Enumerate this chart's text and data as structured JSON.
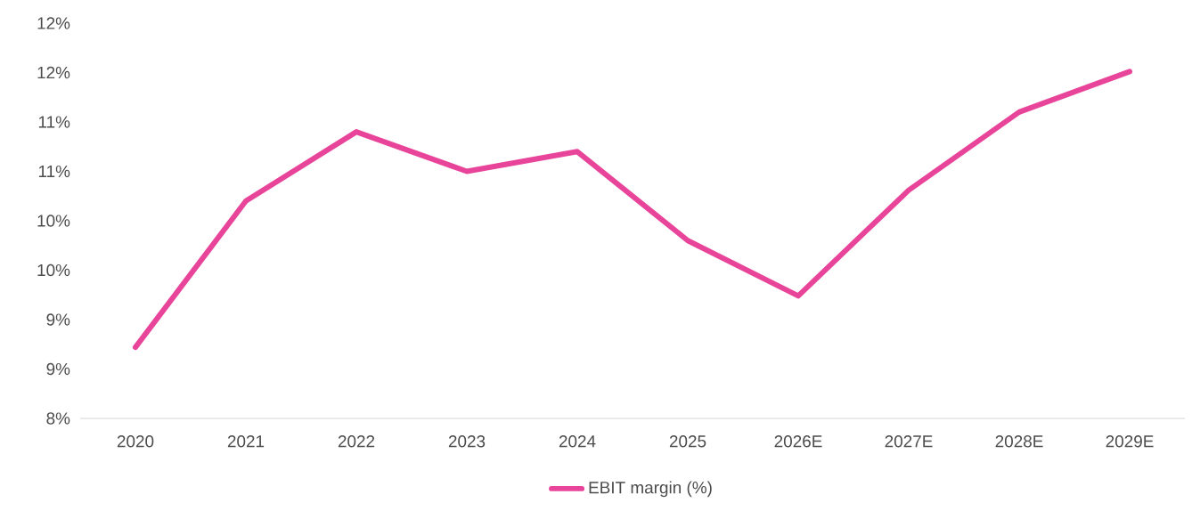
{
  "chart_data": {
    "type": "line",
    "categories": [
      "2020",
      "2021",
      "2022",
      "2023",
      "2024",
      "2025",
      "2026E",
      "2027E",
      "2028E",
      "2029E"
    ],
    "series": [
      {
        "name": "EBIT margin (%)",
        "color": "#e8449a",
        "values": [
          8.72,
          10.2,
          10.9,
          10.5,
          10.7,
          9.8,
          9.24,
          10.31,
          11.1,
          11.51
        ]
      }
    ],
    "ylim": [
      8,
      12
    ],
    "yticks": [
      {
        "value": 8,
        "label": "8%"
      },
      {
        "value": 8.5,
        "label": "9%"
      },
      {
        "value": 9,
        "label": "9%"
      },
      {
        "value": 9.5,
        "label": "10%"
      },
      {
        "value": 10,
        "label": "10%"
      },
      {
        "value": 10.5,
        "label": "11%"
      },
      {
        "value": 11,
        "label": "11%"
      },
      {
        "value": 11.5,
        "label": "12%"
      },
      {
        "value": 12,
        "label": "12%"
      }
    ],
    "legend": "bottom",
    "line_style": "solid"
  }
}
